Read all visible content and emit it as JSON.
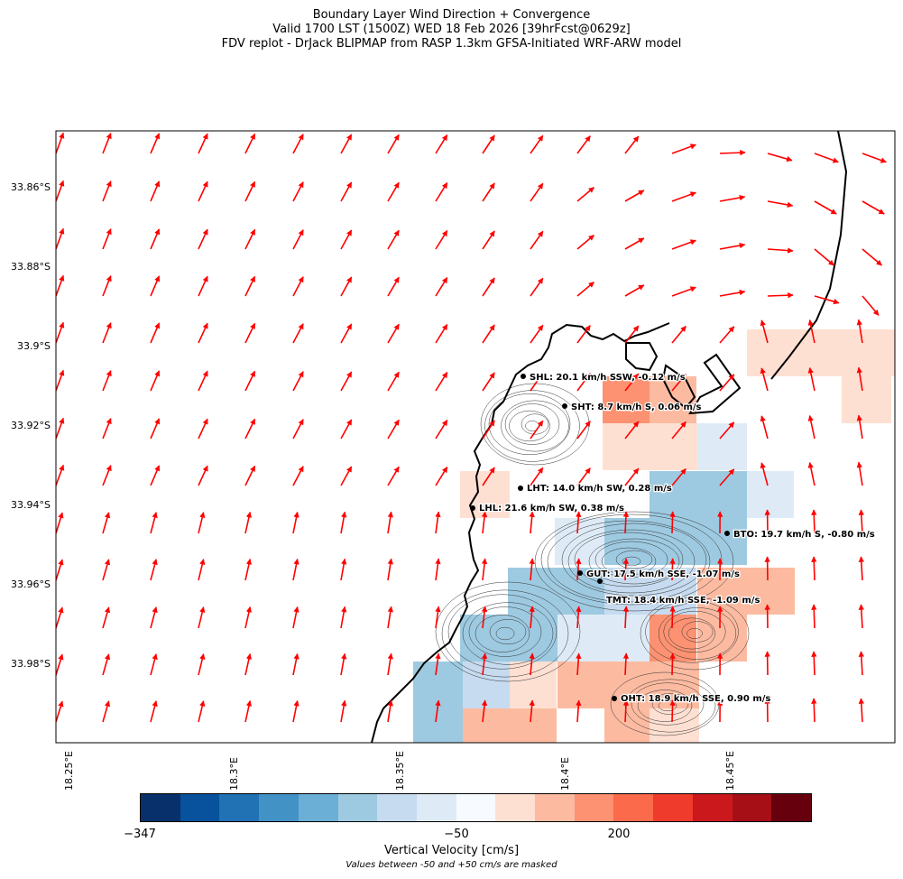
{
  "title": {
    "line1": "Boundary Layer Wind Direction + Convergence",
    "line2": "Valid 1700 LST (1500Z) WED 18 Feb 2026 [39hrFcst@0629z]",
    "line3": "FDV replot - DrJack BLIPMAP from RASP 1.3km GFSA-Initiated WRF-ARW model"
  },
  "lat_labels": [
    "33.86°S",
    "33.88°S",
    "33.9°S",
    "33.92°S",
    "33.94°S",
    "33.96°S",
    "33.98°S"
  ],
  "lon_labels": [
    "18.25°E",
    "18.3°E",
    "18.35°E",
    "18.4°E",
    "18.45°E"
  ],
  "stations": [
    {
      "id": "SHL",
      "label": "SHL: 20.1 km/h SSW, -0.12 m/s"
    },
    {
      "id": "SHT",
      "label": "SHT: 8.7 km/h S, 0.06 m/s"
    },
    {
      "id": "LHT",
      "label": "LHT: 14.0 km/h SW, 0.28 m/s"
    },
    {
      "id": "LHL",
      "label": "LHL: 21.6 km/h SW, 0.38 m/s"
    },
    {
      "id": "BTO",
      "label": "BTO: 19.7 km/h S, -0.80 m/s"
    },
    {
      "id": "GUT",
      "label": "GUT: 17.5 km/h SSE, -1.07 m/s"
    },
    {
      "id": "TMT",
      "label": "TMT: 18.4 km/h SSE, -1.09 m/s"
    },
    {
      "id": "OHT",
      "label": "OHT: 18.9 km/h SSE, 0.90 m/s"
    }
  ],
  "colorbar": {
    "label": "Vertical Velocity [cm/s]",
    "note": "Values between -50 and +50 cm/s are masked",
    "ticks": [
      "−347",
      "−50",
      "200"
    ],
    "colors": [
      "#08306b",
      "#08519c",
      "#2171b5",
      "#4292c6",
      "#6baed6",
      "#9ecae1",
      "#c6dbef",
      "#deebf7",
      "#f7fbff",
      "#fee0d2",
      "#fcbba1",
      "#fc9272",
      "#fb6a4a",
      "#ef3b2c",
      "#cb181d",
      "#a50f15",
      "#67000d"
    ]
  },
  "wind_arrow_color": "#ff0000"
}
